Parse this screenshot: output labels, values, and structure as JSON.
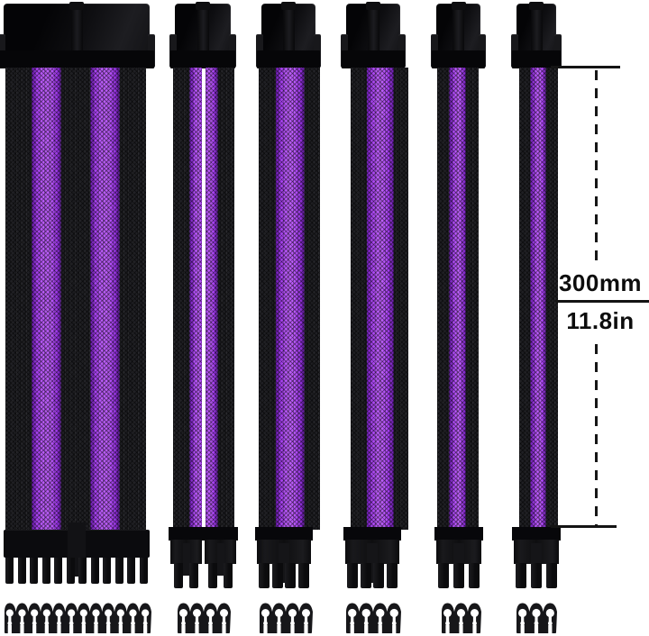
{
  "dimension": {
    "length_mm": "300mm",
    "length_in": "11.8in"
  },
  "colors": {
    "background": "#ffffff",
    "sleeve_black": "#1f1f23",
    "sleeve_purple_edge": "#6a1aae",
    "sleeve_purple": "#a43cf0",
    "sleeve_purple_bright": "#bb5cfa",
    "connector_black": "#0e0e11",
    "comb_black": "#17171a",
    "annotation_black": "#141414"
  },
  "cables": [
    {
      "name": "24-pin ATX extension",
      "sleeve_pattern": "black-purple-black-purple-black",
      "bottom_pin_teeth": 12,
      "comb_loops": 12
    },
    {
      "name": "4+4-pin CPU extension",
      "sleeve_pattern": "black-purple | purple-black",
      "plugs": 2,
      "teeth_per_plug": 2,
      "comb_loops": 4
    },
    {
      "name": "8-pin extension",
      "sleeve_pattern": "black-purple-black",
      "bottom_pin_teeth": 4,
      "comb_loops": 4
    },
    {
      "name": "8-pin extension",
      "sleeve_pattern": "black-purple-black",
      "bottom_pin_teeth": 4,
      "comb_loops": 4
    },
    {
      "name": "6-pin extension",
      "sleeve_pattern": "black-purple-black",
      "bottom_pin_teeth": 3,
      "comb_loops": 3
    },
    {
      "name": "6-pin extension",
      "sleeve_pattern": "black-purple-black",
      "bottom_pin_teeth": 3,
      "comb_loops": 3
    }
  ]
}
